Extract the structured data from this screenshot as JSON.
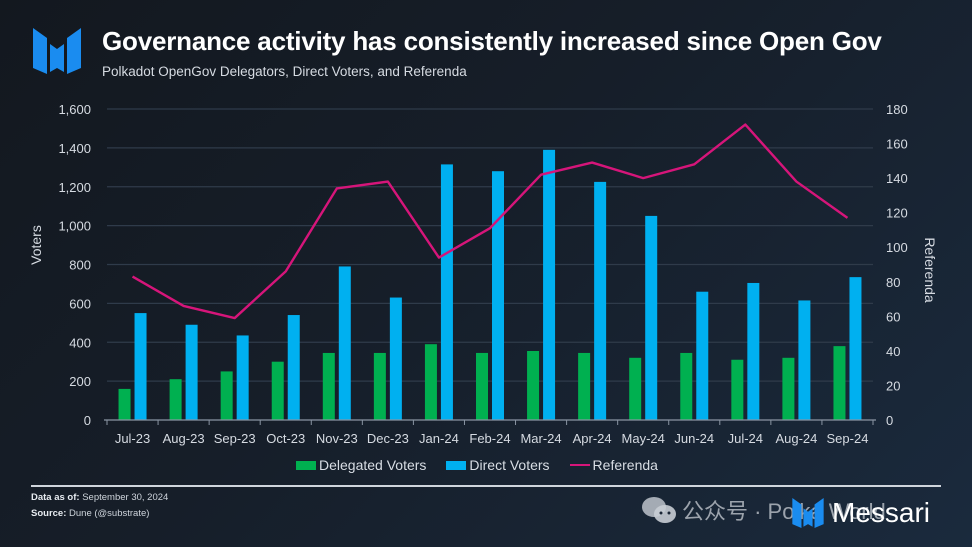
{
  "header": {
    "title": "Governance activity has consistently increased since Open Gov",
    "subtitle": "Polkadot OpenGov Delegators, Direct Voters, and Referenda"
  },
  "colors": {
    "delegated": "#00b050",
    "direct": "#00b0f0",
    "referenda": "#d6157a",
    "brand": "#1a8cf0"
  },
  "chart_data": {
    "type": "bar",
    "title": "Governance activity has consistently increased since Open Gov",
    "subtitle": "Polkadot OpenGov Delegators, Direct Voters, and Referenda",
    "categories": [
      "Jul-23",
      "Aug-23",
      "Sep-23",
      "Oct-23",
      "Nov-23",
      "Dec-23",
      "Jan-24",
      "Feb-24",
      "Mar-24",
      "Apr-24",
      "May-24",
      "Jun-24",
      "Jul-24",
      "Aug-24",
      "Sep-24"
    ],
    "series": [
      {
        "name": "Delegated Voters",
        "type": "bar",
        "axis": "left",
        "values": [
          160,
          210,
          250,
          300,
          345,
          345,
          390,
          345,
          355,
          345,
          320,
          345,
          310,
          320,
          380
        ]
      },
      {
        "name": "Direct Voters",
        "type": "bar",
        "axis": "left",
        "values": [
          550,
          490,
          435,
          540,
          790,
          630,
          1315,
          1280,
          1390,
          1225,
          1050,
          660,
          705,
          615,
          735
        ]
      },
      {
        "name": "Referenda",
        "type": "line",
        "axis": "right",
        "values": [
          83,
          66,
          59,
          86,
          134,
          138,
          94,
          111,
          142,
          149,
          140,
          148,
          171,
          138,
          117
        ]
      }
    ],
    "xlabel": "",
    "ylabel": "Voters",
    "y2label": "Referenda",
    "ylim": [
      0,
      1600
    ],
    "y2lim": [
      0,
      180
    ],
    "yticks": [
      "0",
      "200",
      "400",
      "600",
      "800",
      "1,000",
      "1,200",
      "1,400",
      "1,600"
    ],
    "y2ticks": [
      "0",
      "20",
      "40",
      "60",
      "80",
      "100",
      "120",
      "140",
      "160",
      "180"
    ],
    "grid": true,
    "legend_position": "bottom"
  },
  "legend": {
    "items": [
      {
        "label": "Delegated Voters"
      },
      {
        "label": "Direct Voters"
      },
      {
        "label": "Referenda"
      }
    ]
  },
  "footer": {
    "data_label": "Data as of:",
    "data_value": "September 30, 2024",
    "source_label": "Source:",
    "source_value": "Dune (@substrate)"
  },
  "watermark": {
    "text": "公众号 · Polka World"
  },
  "brand": {
    "name": "Messari"
  }
}
